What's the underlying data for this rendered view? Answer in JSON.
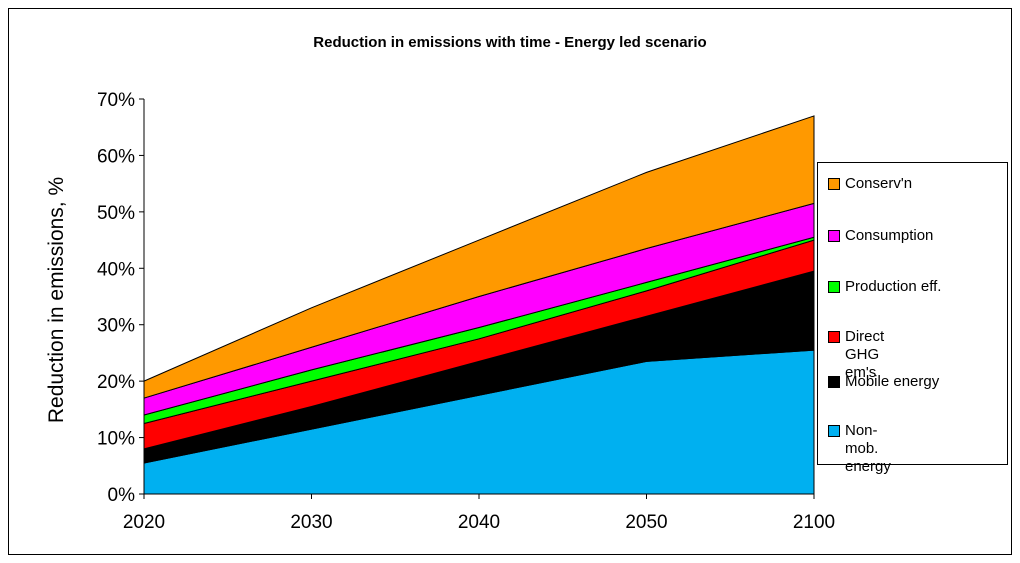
{
  "chart_data": {
    "type": "area",
    "stacked": true,
    "title": "Reduction in emissions with time - Energy led scenario",
    "xlabel": "",
    "ylabel": "Reduction in emissions, %",
    "categories": [
      "2020",
      "2030",
      "2040",
      "2050",
      "2100"
    ],
    "ylim": [
      0,
      70
    ],
    "yticks": [
      "0%",
      "10%",
      "20%",
      "30%",
      "40%",
      "50%",
      "60%",
      "70%"
    ],
    "legend_position": "right",
    "series": [
      {
        "name": "Non-mob. energy",
        "color": "#00b0f0",
        "values": [
          5.5,
          11.5,
          17.5,
          23.5,
          25.5
        ]
      },
      {
        "name": "Mobile energy",
        "color": "#000000",
        "values": [
          2.5,
          4.0,
          6.0,
          8.0,
          14.0
        ]
      },
      {
        "name": "Direct GHG em's",
        "color": "#ff0000",
        "values": [
          4.5,
          4.5,
          4.0,
          4.5,
          5.5
        ]
      },
      {
        "name": "Production eff.",
        "color": "#00ff00",
        "values": [
          1.5,
          2.0,
          2.0,
          1.5,
          0.5
        ]
      },
      {
        "name": "Consumption",
        "color": "#ff00ff",
        "values": [
          3.0,
          4.0,
          5.5,
          6.0,
          6.0
        ]
      },
      {
        "name": "Conserv'n",
        "color": "#ff9900",
        "values": [
          3.0,
          7.0,
          10.0,
          13.5,
          15.5
        ]
      }
    ]
  }
}
